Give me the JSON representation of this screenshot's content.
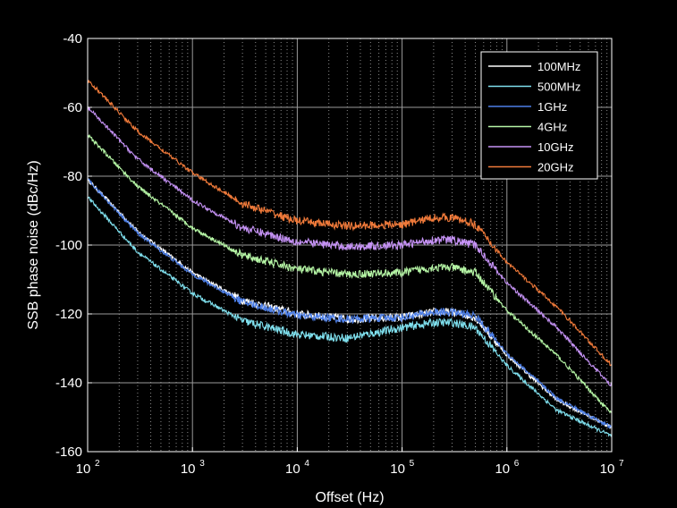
{
  "chart_data": {
    "type": "line",
    "title": "",
    "xlabel": "Offset (Hz)",
    "ylabel": "SSB phase noise (dBc/Hz)",
    "xscale": "log",
    "xlim": [
      100,
      10000000
    ],
    "ylim": [
      -160,
      -40
    ],
    "grid": true,
    "legend_position": "top-right",
    "x_ticks": [
      {
        "base": "10",
        "exp": "2"
      },
      {
        "base": "10",
        "exp": "3"
      },
      {
        "base": "10",
        "exp": "4"
      },
      {
        "base": "10",
        "exp": "5"
      },
      {
        "base": "10",
        "exp": "6"
      },
      {
        "base": "10",
        "exp": "7"
      }
    ],
    "y_ticks": [
      "-40",
      "-60",
      "-80",
      "-100",
      "-120",
      "-140",
      "-160"
    ],
    "x": [
      100,
      300,
      1000,
      3000,
      10000,
      30000,
      100000,
      200000,
      300000,
      500000,
      1000000,
      3000000,
      10000000
    ],
    "series": [
      {
        "name": "100MHz",
        "color": "#ffffff",
        "values": [
          -81,
          -96,
          -108,
          -116,
          -120,
          -121.5,
          -121,
          -119.5,
          -119.5,
          -121,
          -132,
          -145,
          -153
        ]
      },
      {
        "name": "500MHz",
        "color": "#7fe0ee",
        "values": [
          -86,
          -102,
          -114,
          -122,
          -126,
          -127,
          -124,
          -122.5,
          -122.5,
          -124,
          -135,
          -148,
          -155.5
        ]
      },
      {
        "name": "1GHz",
        "color": "#4d7fe8",
        "values": [
          -81,
          -96.5,
          -108.5,
          -116.5,
          -120.5,
          -121.5,
          -121,
          -119.5,
          -119.5,
          -120.5,
          -131.5,
          -144.5,
          -153
        ]
      },
      {
        "name": "4GHz",
        "color": "#b5f5a5",
        "values": [
          -68,
          -83,
          -95,
          -103,
          -107,
          -108.5,
          -108,
          -106.5,
          -106.5,
          -108,
          -119,
          -132,
          -149
        ]
      },
      {
        "name": "10GHz",
        "color": "#c592f5",
        "values": [
          -60,
          -75,
          -87,
          -95,
          -99,
          -100.5,
          -100,
          -98.5,
          -98.5,
          -100,
          -111,
          -124,
          -141
        ]
      },
      {
        "name": "20GHz",
        "color": "#f07a3a",
        "values": [
          -52,
          -67,
          -79,
          -88,
          -93,
          -94.5,
          -94,
          -92,
          -92,
          -94,
          -105,
          -118,
          -135
        ]
      }
    ]
  }
}
